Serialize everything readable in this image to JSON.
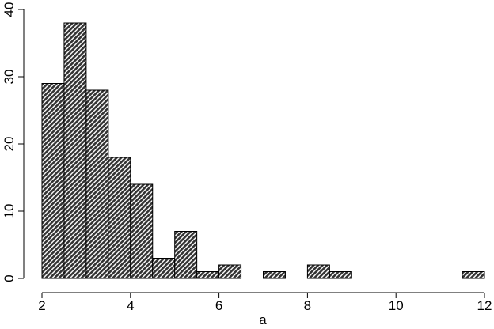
{
  "chart_data": {
    "type": "histogram",
    "xlabel": "a",
    "bins": [
      2,
      2.5,
      3,
      3.5,
      4,
      4.5,
      5,
      5.5,
      6,
      6.5,
      7,
      7.5,
      8,
      8.5,
      9,
      9.5,
      10,
      10.5,
      11,
      11.5,
      12
    ],
    "values": [
      29,
      38,
      28,
      18,
      14,
      3,
      7,
      1,
      2,
      0,
      1,
      0,
      2,
      1,
      0,
      0,
      0,
      0,
      0,
      1
    ],
    "color": "#333333",
    "xlim": [
      2,
      12
    ],
    "xticks": [
      2,
      4,
      6,
      8,
      10,
      12
    ],
    "ylim": [
      0,
      40
    ],
    "yticks": [
      0,
      10,
      20,
      30,
      40
    ],
    "grid": false
  }
}
